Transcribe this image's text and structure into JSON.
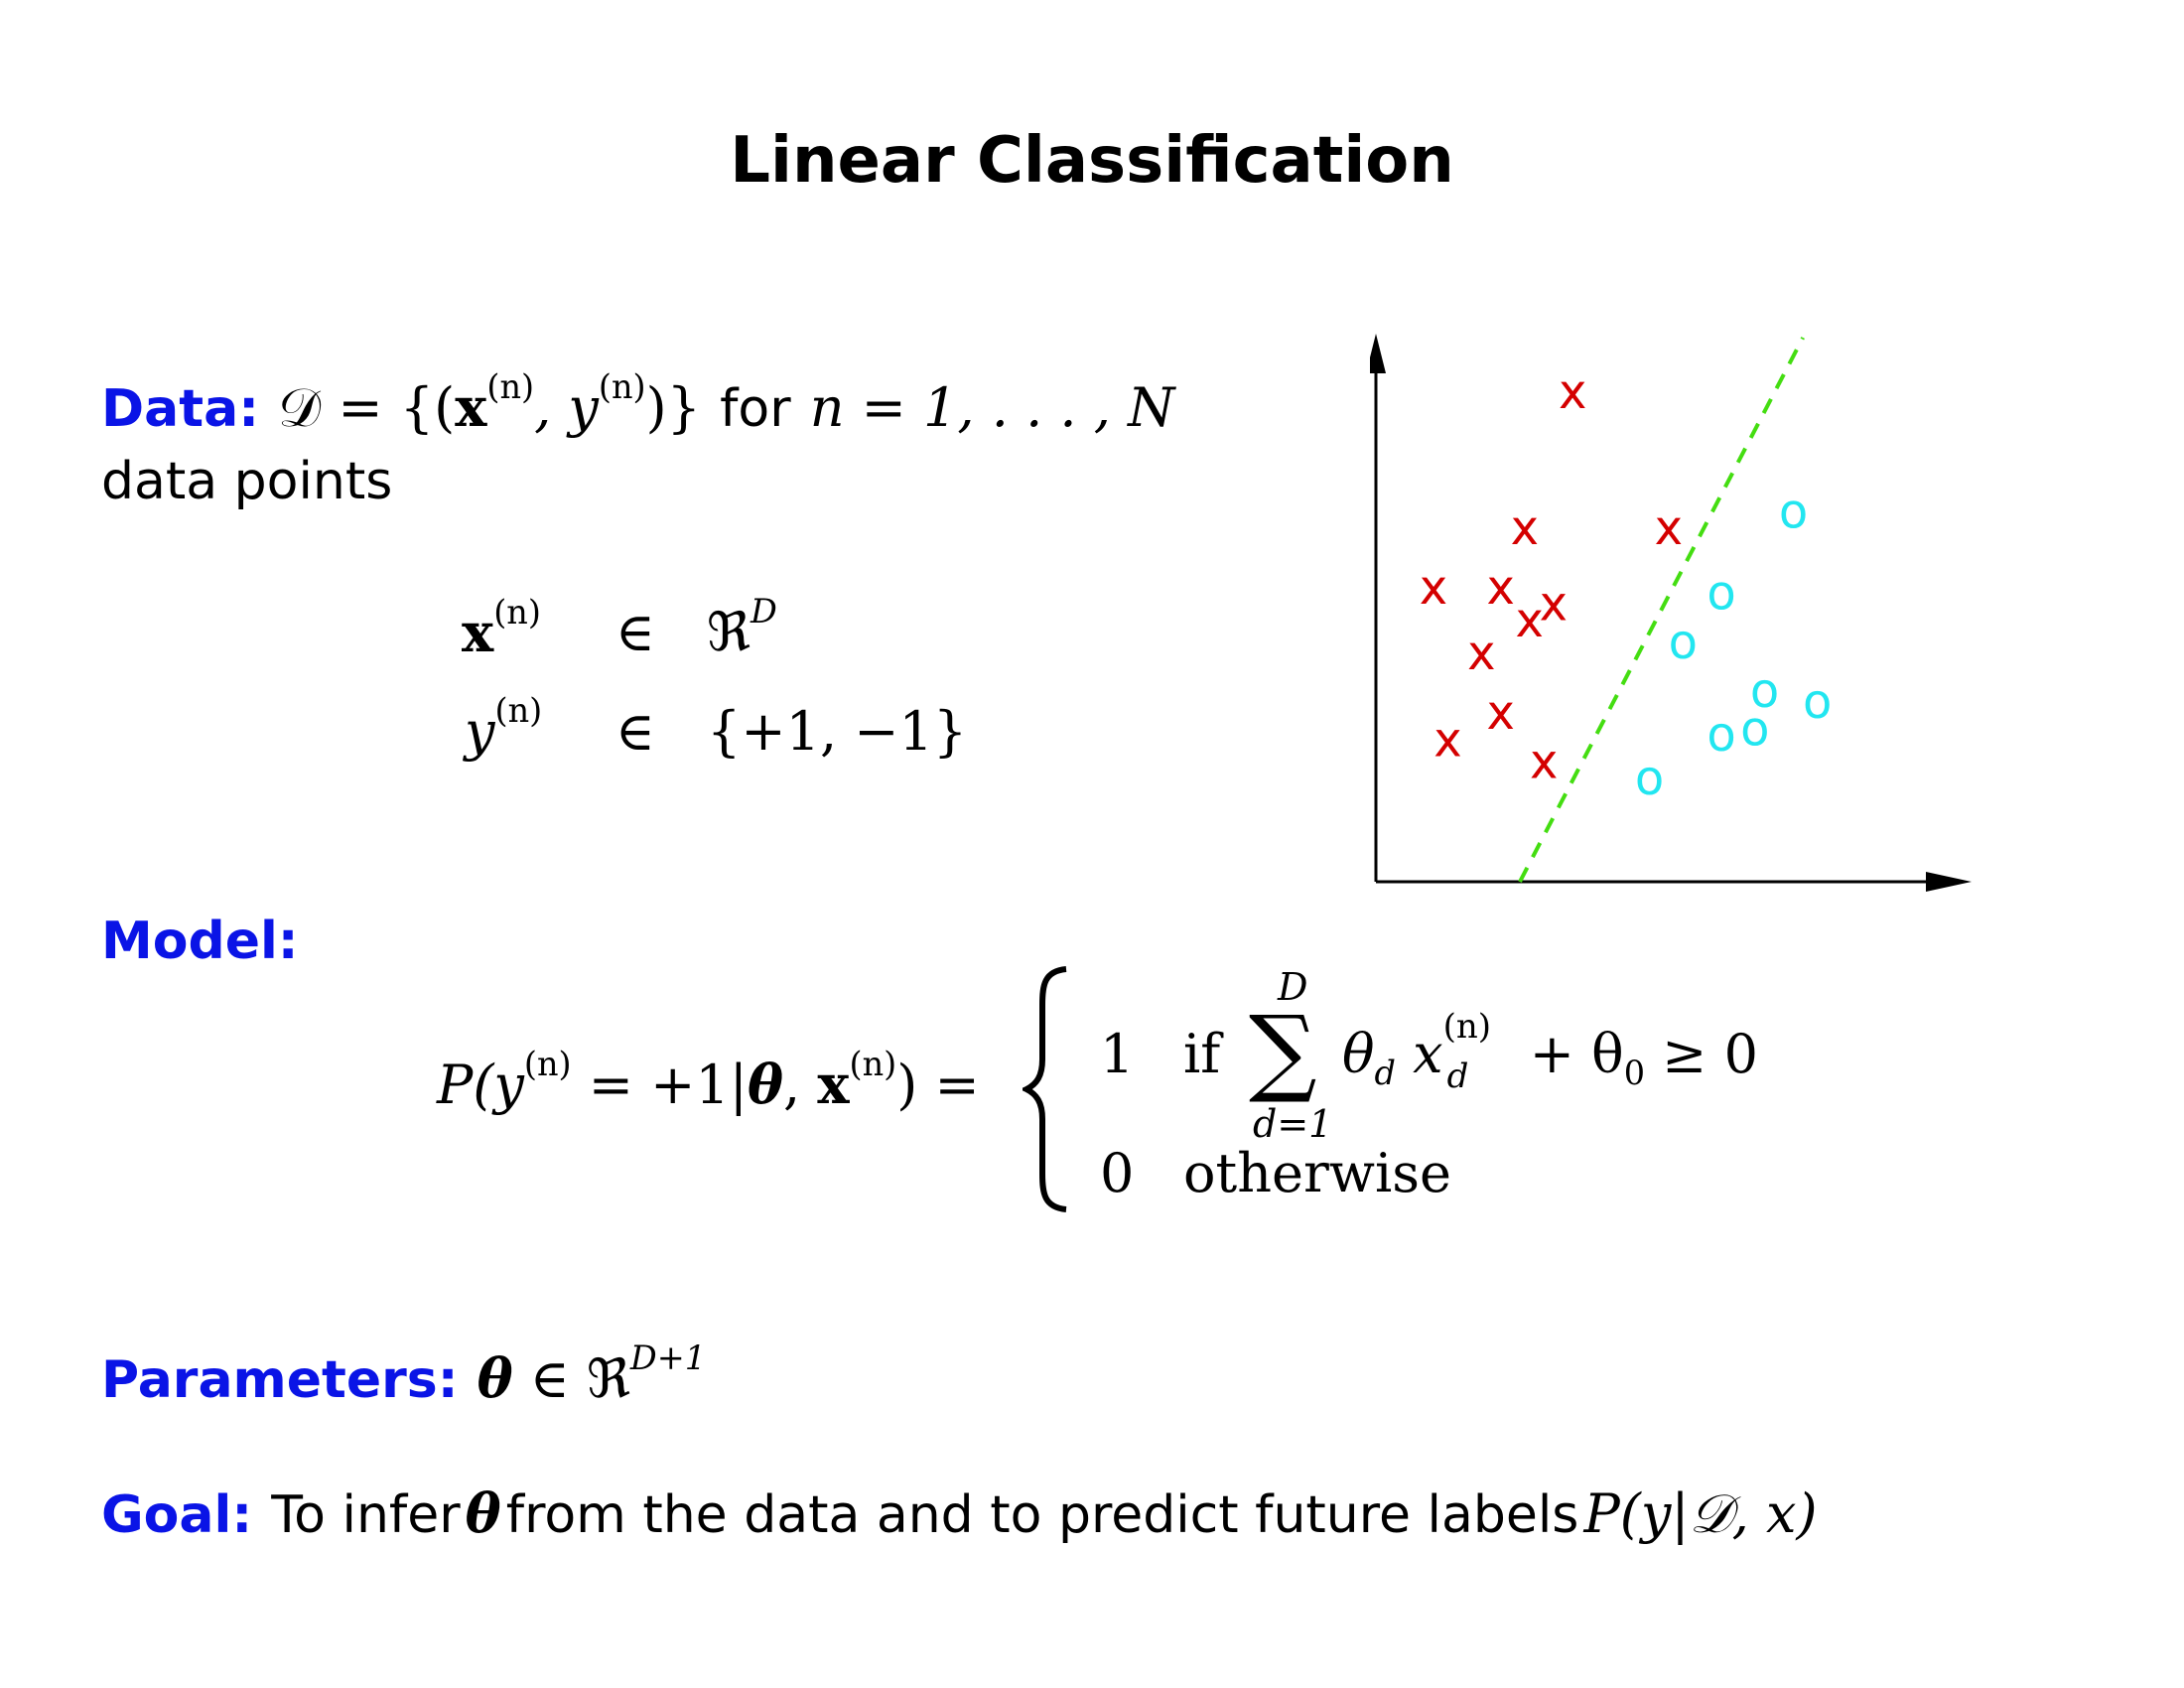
{
  "title": "Linear Classification",
  "data_section": {
    "label": "Data:",
    "line1_prefix": "𝒟 = {(",
    "x": "x",
    "sup_n": "(n)",
    "comma_y": ", y",
    "close": ")}",
    "for_text": "for",
    "range": "n = 1, . . . , N",
    "line2": "data points",
    "row1_lhs": "x",
    "row1_rel": "∈",
    "row1_rhs": "ℜ",
    "row1_rhs_sup": "D",
    "row2_lhs": "y",
    "row2_rel": "∈",
    "row2_rhs": "{+1, −1}"
  },
  "model_section": {
    "label": "Model:",
    "lhs_p": "P(y",
    "lhs_mid": " = +1|",
    "theta": "θ",
    "lhs_comma": ", ",
    "lhs_x": "x",
    "lhs_close": ") =",
    "case1_value": "1",
    "case1_if": "if",
    "sum_upper": "D",
    "sum_lower": "d=1",
    "case1_theta_d": "θ",
    "sub_d": "d",
    "case1_x": "x",
    "case1_tail": "+ θ",
    "sub_0": "0",
    "case1_ge": "≥ 0",
    "case2_value": "0",
    "case2_text": "otherwise"
  },
  "parameters_section": {
    "label": "Parameters:",
    "theta": "θ",
    "rel": "∈ ℜ",
    "sup": "D+1"
  },
  "goal_section": {
    "label": "Goal:",
    "text1": "To infer",
    "theta": "θ",
    "text2": "from the data and to predict future labels",
    "formula": "P(y|𝒟, x)"
  },
  "chart_data": {
    "type": "scatter",
    "series": [
      {
        "marker": "x",
        "color": "#d40000",
        "points": [
          [
            2.05,
            9.0
          ],
          [
            1.55,
            6.5
          ],
          [
            3.05,
            6.5
          ],
          [
            0.6,
            5.4
          ],
          [
            1.3,
            5.4
          ],
          [
            1.85,
            5.1
          ],
          [
            1.6,
            4.8
          ],
          [
            1.1,
            4.2
          ],
          [
            0.75,
            2.6
          ],
          [
            1.3,
            3.1
          ],
          [
            1.75,
            2.2
          ]
        ]
      },
      {
        "marker": "o",
        "color": "#22e6f0",
        "points": [
          [
            4.35,
            6.8
          ],
          [
            3.6,
            5.3
          ],
          [
            3.2,
            4.4
          ],
          [
            4.05,
            3.5
          ],
          [
            4.6,
            3.3
          ],
          [
            3.6,
            2.7
          ],
          [
            3.95,
            2.8
          ],
          [
            2.85,
            1.9
          ]
        ]
      }
    ],
    "boundary": {
      "style": "dashed",
      "color": "#44dd11",
      "from": [
        1.5,
        0.0
      ],
      "to": [
        4.45,
        10.0
      ]
    },
    "xlim": [
      0,
      6
    ],
    "ylim": [
      0,
      10
    ],
    "axes": "arrows",
    "grid": false
  }
}
